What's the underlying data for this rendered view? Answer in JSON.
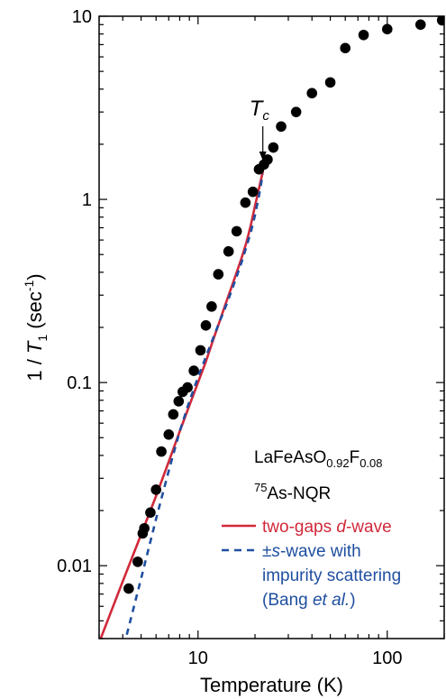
{
  "chart_data": {
    "type": "scatter",
    "xscale": "log",
    "yscale": "log",
    "xlim": [
      3,
      200
    ],
    "ylim": [
      0.004,
      10
    ],
    "xlabel": "Temperature (K)",
    "ylabel_parts": [
      "1 / ",
      "T",
      "1",
      " (sec",
      "-1",
      ")"
    ],
    "x_ticks": [
      {
        "v": 10,
        "label": "10"
      },
      {
        "v": 100,
        "label": "100"
      }
    ],
    "y_ticks": [
      {
        "v": 0.01,
        "label": "0.01"
      },
      {
        "v": 0.1,
        "label": "0.1"
      },
      {
        "v": 1,
        "label": "1"
      },
      {
        "v": 10,
        "label": "10"
      }
    ],
    "grid": false,
    "series": [
      {
        "kind": "points",
        "color": "#000000",
        "x": [
          4.3,
          4.8,
          5.1,
          5.2,
          5.6,
          6.0,
          6.4,
          7.0,
          7.4,
          7.9,
          8.3,
          8.8,
          9.5,
          10.3,
          11.0,
          11.8,
          12.8,
          14.5,
          16.0,
          17.8,
          19.5,
          21.0,
          22.3,
          23.3,
          25.0,
          27.5,
          33.0,
          40.0,
          50.0,
          60.0,
          75.0,
          100.0,
          150.0,
          195.0
        ],
        "y": [
          0.0075,
          0.0105,
          0.015,
          0.016,
          0.0195,
          0.026,
          0.042,
          0.052,
          0.067,
          0.079,
          0.089,
          0.094,
          0.116,
          0.15,
          0.205,
          0.26,
          0.39,
          0.52,
          0.67,
          0.96,
          1.1,
          1.46,
          1.55,
          1.65,
          1.92,
          2.5,
          3.0,
          3.8,
          4.35,
          6.7,
          7.9,
          8.5,
          9.0,
          9.5
        ]
      },
      {
        "kind": "line",
        "name": "two-gaps d-wave",
        "color": "#d1293a",
        "dash": "none",
        "x": [
          3.0,
          4.0,
          5.0,
          6.0,
          7.0,
          8.0,
          9.0,
          10.0,
          11.0,
          12.0,
          13.0,
          14.0,
          15.0,
          16.0,
          17.0,
          18.0,
          19.0,
          20.0,
          21.0,
          22.0
        ],
        "y": [
          0.0038,
          0.0082,
          0.0148,
          0.024,
          0.037,
          0.054,
          0.075,
          0.1,
          0.13,
          0.17,
          0.215,
          0.27,
          0.33,
          0.4,
          0.48,
          0.58,
          0.72,
          0.92,
          1.15,
          1.42
        ]
      },
      {
        "kind": "line",
        "name": "±s-wave with impurity scattering (Bang et al.)",
        "color": "#1f4fa0",
        "dash": "7,6",
        "x": [
          4.2,
          5.0,
          6.0,
          7.0,
          8.0,
          9.0,
          10.0,
          11.0,
          12.0,
          13.0,
          14.0,
          15.0,
          16.0,
          17.0,
          18.0,
          19.0,
          20.0,
          21.0,
          22.0
        ],
        "y": [
          0.0042,
          0.0085,
          0.018,
          0.033,
          0.054,
          0.079,
          0.107,
          0.138,
          0.174,
          0.215,
          0.26,
          0.315,
          0.38,
          0.455,
          0.55,
          0.66,
          0.82,
          1.05,
          1.38
        ]
      }
    ],
    "annotation": {
      "text": "T",
      "sub": "c",
      "x": 22.0
    },
    "legend": {
      "position": "bottom-right",
      "title_line1": {
        "main": "LaFeAsO",
        "sub1": "0.92",
        "mid": "F",
        "sub2": "0.08"
      },
      "title_line2": {
        "sup": "75",
        "main": "As-NQR"
      },
      "entry_red": {
        "prefix": "two-gaps ",
        "italic": "d",
        "suffix": "-wave"
      },
      "entry_blue": {
        "line1": {
          "prefix": "±",
          "italic": "s",
          "suffix": "-wave with"
        },
        "line2": "impurity scattering",
        "line3": {
          "prefix": "(Bang ",
          "italic": "et al.",
          "suffix": ")"
        }
      }
    }
  }
}
